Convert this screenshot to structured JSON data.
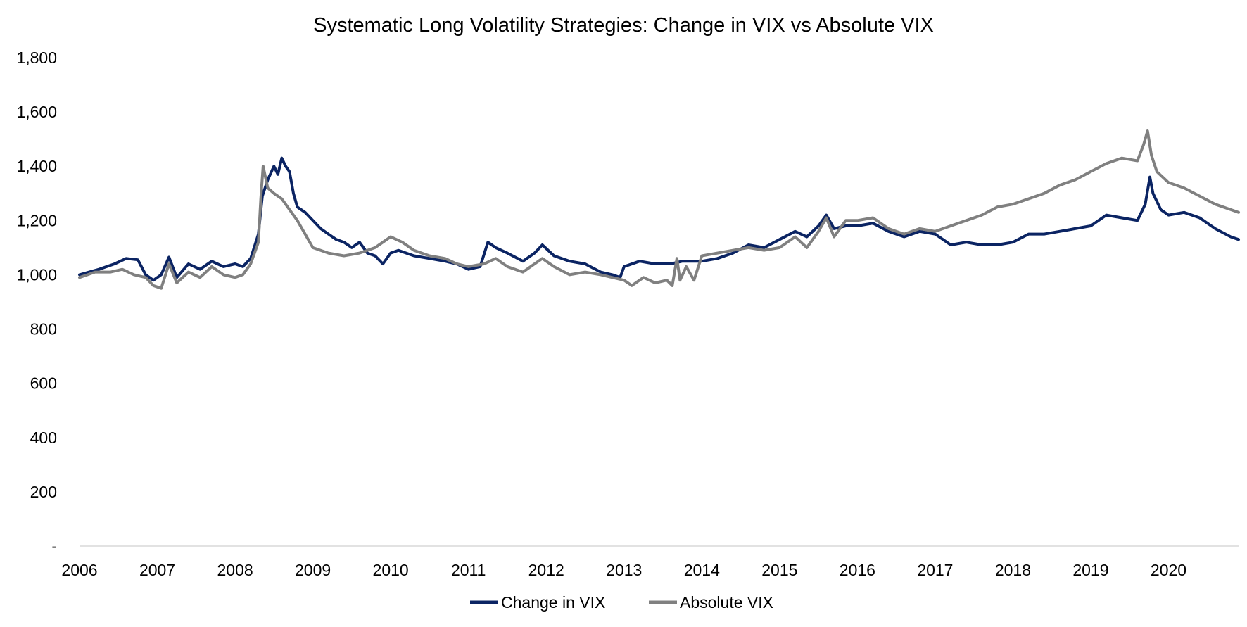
{
  "chart_data": {
    "type": "line",
    "title": "Systematic Long Volatility Strategies: Change in VIX vs Absolute VIX",
    "xlabel": "",
    "ylabel": "",
    "x_unit": "year",
    "xlim": [
      2006.0,
      2020.9
    ],
    "ylim": [
      0,
      1800
    ],
    "y_ticks": [
      0,
      200,
      400,
      600,
      800,
      1000,
      1200,
      1400,
      1600,
      1800
    ],
    "y_tick_labels": [
      "-",
      "200",
      "400",
      "600",
      "800",
      "1,000",
      "1,200",
      "1,400",
      "1,600",
      "1,800"
    ],
    "x_ticks": [
      2006,
      2007,
      2008,
      2009,
      2010,
      2011,
      2012,
      2013,
      2014,
      2015,
      2016,
      2017,
      2018,
      2019,
      2020
    ],
    "x_tick_labels": [
      "2006",
      "2007",
      "2008",
      "2009",
      "2010",
      "2011",
      "2012",
      "2013",
      "2014",
      "2015",
      "2016",
      "2017",
      "2018",
      "2019",
      "2020"
    ],
    "grid": false,
    "legend_position": "bottom-center",
    "series": [
      {
        "name": "Change in VIX",
        "color": "#0b2463",
        "points": [
          [
            2006.0,
            1000
          ],
          [
            2006.25,
            1020
          ],
          [
            2006.45,
            1040
          ],
          [
            2006.6,
            1060
          ],
          [
            2006.75,
            1055
          ],
          [
            2006.85,
            1000
          ],
          [
            2006.95,
            980
          ],
          [
            2007.05,
            1000
          ],
          [
            2007.15,
            1065
          ],
          [
            2007.25,
            990
          ],
          [
            2007.4,
            1040
          ],
          [
            2007.55,
            1020
          ],
          [
            2007.7,
            1050
          ],
          [
            2007.85,
            1030
          ],
          [
            2008.0,
            1040
          ],
          [
            2008.1,
            1030
          ],
          [
            2008.2,
            1060
          ],
          [
            2008.3,
            1150
          ],
          [
            2008.35,
            1290
          ],
          [
            2008.42,
            1350
          ],
          [
            2008.5,
            1400
          ],
          [
            2008.55,
            1370
          ],
          [
            2008.6,
            1430
          ],
          [
            2008.65,
            1400
          ],
          [
            2008.7,
            1380
          ],
          [
            2008.75,
            1300
          ],
          [
            2008.8,
            1250
          ],
          [
            2008.9,
            1230
          ],
          [
            2009.0,
            1200
          ],
          [
            2009.1,
            1170
          ],
          [
            2009.2,
            1150
          ],
          [
            2009.3,
            1130
          ],
          [
            2009.4,
            1120
          ],
          [
            2009.5,
            1100
          ],
          [
            2009.6,
            1120
          ],
          [
            2009.7,
            1080
          ],
          [
            2009.8,
            1070
          ],
          [
            2009.9,
            1040
          ],
          [
            2010.0,
            1080
          ],
          [
            2010.1,
            1090
          ],
          [
            2010.3,
            1070
          ],
          [
            2010.5,
            1060
          ],
          [
            2010.7,
            1050
          ],
          [
            2010.85,
            1040
          ],
          [
            2011.0,
            1020
          ],
          [
            2011.15,
            1030
          ],
          [
            2011.25,
            1120
          ],
          [
            2011.35,
            1100
          ],
          [
            2011.5,
            1080
          ],
          [
            2011.7,
            1050
          ],
          [
            2011.85,
            1080
          ],
          [
            2011.95,
            1110
          ],
          [
            2012.1,
            1070
          ],
          [
            2012.3,
            1050
          ],
          [
            2012.5,
            1040
          ],
          [
            2012.7,
            1010
          ],
          [
            2012.85,
            1000
          ],
          [
            2012.95,
            990
          ],
          [
            2013.0,
            1030
          ],
          [
            2013.2,
            1050
          ],
          [
            2013.4,
            1040
          ],
          [
            2013.6,
            1040
          ],
          [
            2013.75,
            1050
          ],
          [
            2013.85,
            1050
          ],
          [
            2014.0,
            1050
          ],
          [
            2014.2,
            1060
          ],
          [
            2014.4,
            1080
          ],
          [
            2014.6,
            1110
          ],
          [
            2014.8,
            1100
          ],
          [
            2015.0,
            1130
          ],
          [
            2015.2,
            1160
          ],
          [
            2015.35,
            1140
          ],
          [
            2015.5,
            1180
          ],
          [
            2015.6,
            1220
          ],
          [
            2015.7,
            1170
          ],
          [
            2015.85,
            1180
          ],
          [
            2016.0,
            1180
          ],
          [
            2016.2,
            1190
          ],
          [
            2016.4,
            1160
          ],
          [
            2016.6,
            1140
          ],
          [
            2016.8,
            1160
          ],
          [
            2017.0,
            1150
          ],
          [
            2017.2,
            1110
          ],
          [
            2017.4,
            1120
          ],
          [
            2017.6,
            1110
          ],
          [
            2017.8,
            1110
          ],
          [
            2018.0,
            1120
          ],
          [
            2018.2,
            1150
          ],
          [
            2018.4,
            1150
          ],
          [
            2018.6,
            1160
          ],
          [
            2018.8,
            1170
          ],
          [
            2019.0,
            1180
          ],
          [
            2019.2,
            1220
          ],
          [
            2019.4,
            1210
          ],
          [
            2019.6,
            1200
          ],
          [
            2019.7,
            1260
          ],
          [
            2019.76,
            1360
          ],
          [
            2019.8,
            1300
          ],
          [
            2019.9,
            1240
          ],
          [
            2020.0,
            1220
          ],
          [
            2020.2,
            1230
          ],
          [
            2020.4,
            1210
          ],
          [
            2020.6,
            1170
          ],
          [
            2020.8,
            1140
          ],
          [
            2020.9,
            1130
          ]
        ]
      },
      {
        "name": "Absolute VIX",
        "color": "#808080",
        "points": [
          [
            2006.0,
            990
          ],
          [
            2006.2,
            1010
          ],
          [
            2006.4,
            1010
          ],
          [
            2006.55,
            1020
          ],
          [
            2006.7,
            1000
          ],
          [
            2006.85,
            990
          ],
          [
            2006.95,
            960
          ],
          [
            2007.05,
            950
          ],
          [
            2007.15,
            1040
          ],
          [
            2007.25,
            970
          ],
          [
            2007.4,
            1010
          ],
          [
            2007.55,
            990
          ],
          [
            2007.7,
            1030
          ],
          [
            2007.85,
            1000
          ],
          [
            2008.0,
            990
          ],
          [
            2008.1,
            1000
          ],
          [
            2008.2,
            1040
          ],
          [
            2008.3,
            1120
          ],
          [
            2008.33,
            1280
          ],
          [
            2008.36,
            1400
          ],
          [
            2008.42,
            1320
          ],
          [
            2008.5,
            1300
          ],
          [
            2008.6,
            1280
          ],
          [
            2008.7,
            1240
          ],
          [
            2008.8,
            1200
          ],
          [
            2008.9,
            1150
          ],
          [
            2009.0,
            1100
          ],
          [
            2009.2,
            1080
          ],
          [
            2009.4,
            1070
          ],
          [
            2009.6,
            1080
          ],
          [
            2009.8,
            1100
          ],
          [
            2009.9,
            1120
          ],
          [
            2010.0,
            1140
          ],
          [
            2010.15,
            1120
          ],
          [
            2010.3,
            1090
          ],
          [
            2010.5,
            1070
          ],
          [
            2010.7,
            1060
          ],
          [
            2010.85,
            1040
          ],
          [
            2011.0,
            1030
          ],
          [
            2011.2,
            1040
          ],
          [
            2011.35,
            1060
          ],
          [
            2011.5,
            1030
          ],
          [
            2011.7,
            1010
          ],
          [
            2011.85,
            1040
          ],
          [
            2011.95,
            1060
          ],
          [
            2012.1,
            1030
          ],
          [
            2012.3,
            1000
          ],
          [
            2012.5,
            1010
          ],
          [
            2012.7,
            1000
          ],
          [
            2012.85,
            990
          ],
          [
            2013.0,
            980
          ],
          [
            2013.1,
            960
          ],
          [
            2013.25,
            990
          ],
          [
            2013.4,
            970
          ],
          [
            2013.55,
            980
          ],
          [
            2013.62,
            960
          ],
          [
            2013.68,
            1060
          ],
          [
            2013.72,
            980
          ],
          [
            2013.8,
            1030
          ],
          [
            2013.9,
            980
          ],
          [
            2014.0,
            1070
          ],
          [
            2014.2,
            1080
          ],
          [
            2014.4,
            1090
          ],
          [
            2014.6,
            1100
          ],
          [
            2014.8,
            1090
          ],
          [
            2015.0,
            1100
          ],
          [
            2015.2,
            1140
          ],
          [
            2015.35,
            1100
          ],
          [
            2015.5,
            1160
          ],
          [
            2015.6,
            1210
          ],
          [
            2015.7,
            1140
          ],
          [
            2015.85,
            1200
          ],
          [
            2016.0,
            1200
          ],
          [
            2016.2,
            1210
          ],
          [
            2016.4,
            1170
          ],
          [
            2016.6,
            1150
          ],
          [
            2016.8,
            1170
          ],
          [
            2017.0,
            1160
          ],
          [
            2017.2,
            1180
          ],
          [
            2017.4,
            1200
          ],
          [
            2017.6,
            1220
          ],
          [
            2017.8,
            1250
          ],
          [
            2018.0,
            1260
          ],
          [
            2018.2,
            1280
          ],
          [
            2018.4,
            1300
          ],
          [
            2018.6,
            1330
          ],
          [
            2018.8,
            1350
          ],
          [
            2019.0,
            1380
          ],
          [
            2019.2,
            1410
          ],
          [
            2019.4,
            1430
          ],
          [
            2019.6,
            1420
          ],
          [
            2019.68,
            1480
          ],
          [
            2019.73,
            1530
          ],
          [
            2019.78,
            1440
          ],
          [
            2019.85,
            1380
          ],
          [
            2020.0,
            1340
          ],
          [
            2020.2,
            1320
          ],
          [
            2020.4,
            1290
          ],
          [
            2020.6,
            1260
          ],
          [
            2020.8,
            1240
          ],
          [
            2020.9,
            1230
          ]
        ]
      }
    ]
  }
}
